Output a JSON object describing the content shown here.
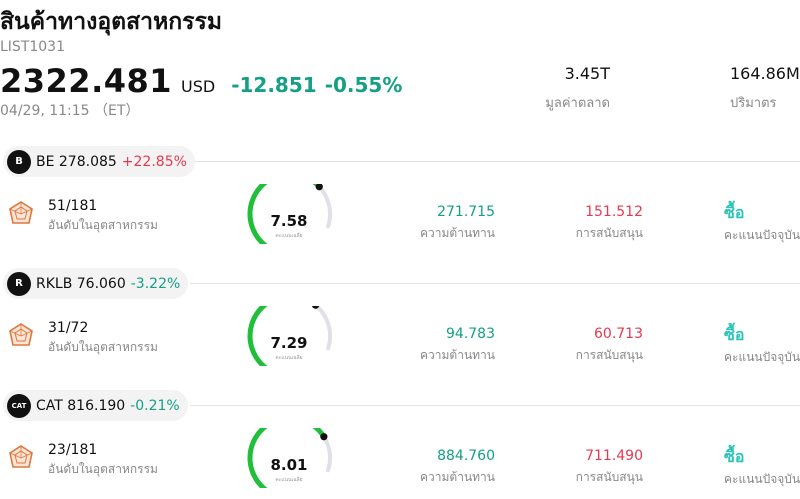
{
  "header": {
    "title": "สินค้าทางอุตสาหกรรม",
    "code": "LIST1031",
    "price": "2322.481",
    "currency": "USD",
    "change": "-12.851",
    "change_pct": "-0.55%",
    "timestamp": "04/29, 11:15 （ET）"
  },
  "stats": {
    "market_cap_value": "3.45T",
    "market_cap_label": "มูลค่าตลาด",
    "volume_value": "164.86M",
    "volume_label": "ปริมาตร"
  },
  "colors": {
    "positive": "#e8384f",
    "negative": "#14a085",
    "gauge_high": "#1fbf3a",
    "rating": "#2ac4b8"
  },
  "stocks": [
    {
      "logo": "B",
      "name_price": "BE 278.085",
      "change": "+22.85%",
      "direction": "up",
      "rank": "51/181",
      "rank_label": "อันดับในอุตสาหกรรม",
      "score": "7.58",
      "score_value": 7.58,
      "score_label": "คะแนนเฉลี่ย",
      "resistance": "271.715",
      "resistance_label": "ความต้านทาน",
      "support": "151.512",
      "support_label": "การสนับสนุน",
      "rating": "ซื้อ",
      "rating_label": "คะแนนปัจจุบัน"
    },
    {
      "logo": "R",
      "name_price": "RKLB 76.060",
      "change": "-3.22%",
      "direction": "down",
      "rank": "31/72",
      "rank_label": "อันดับในอุตสาหกรรม",
      "score": "7.29",
      "score_value": 7.29,
      "score_label": "คะแนนเฉลี่ย",
      "resistance": "94.783",
      "resistance_label": "ความต้านทาน",
      "support": "60.713",
      "support_label": "การสนับสนุน",
      "rating": "ซื้อ",
      "rating_label": "คะแนนปัจจุบัน"
    },
    {
      "logo": "CAT",
      "name_price": "CAT 816.190",
      "change": "-0.21%",
      "direction": "down",
      "rank": "23/181",
      "rank_label": "อันดับในอุตสาหกรรม",
      "score": "8.01",
      "score_value": 8.01,
      "score_label": "คะแนนเฉลี่ย",
      "resistance": "884.760",
      "resistance_label": "ความต้านทาน",
      "support": "711.490",
      "support_label": "การสนับสนุน",
      "rating": "ซื้อ",
      "rating_label": "คะแนนปัจจุบัน"
    }
  ]
}
